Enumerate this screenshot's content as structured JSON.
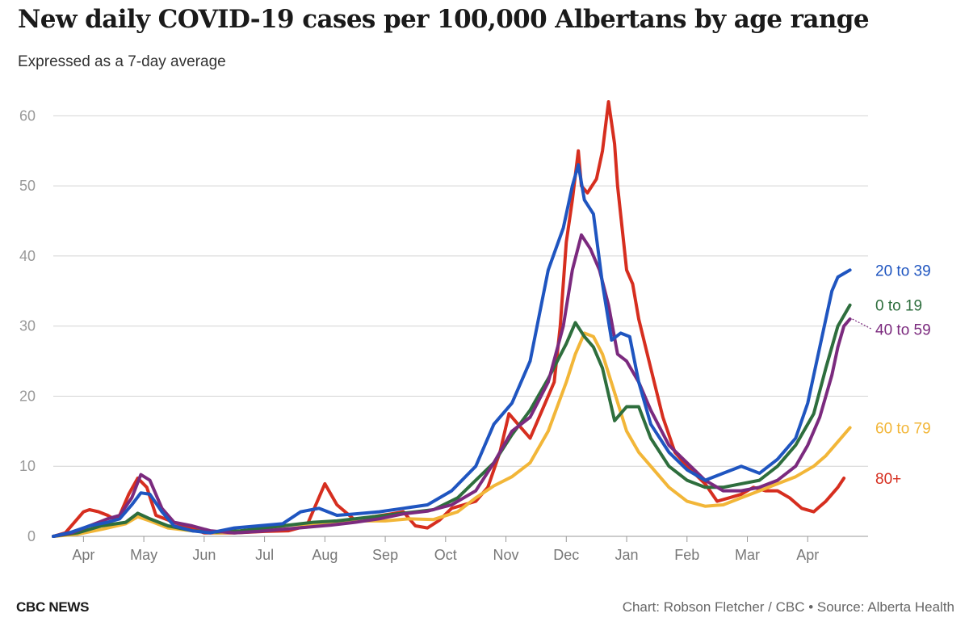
{
  "chart_data": {
    "type": "line",
    "title": "New daily COVID-19 cases per 100,000 Albertans by age range",
    "subtitle": "Expressed as a 7-day average",
    "xlabel": "",
    "ylabel": "",
    "ylim": [
      0,
      65
    ],
    "yticks": [
      0,
      10,
      20,
      30,
      40,
      50,
      60
    ],
    "grid": true,
    "x_domain": [
      0,
      13.5
    ],
    "months": [
      "Apr",
      "May",
      "Jun",
      "Jul",
      "Aug",
      "Sep",
      "Oct",
      "Nov",
      "Dec",
      "Jan",
      "Feb",
      "Mar",
      "Apr"
    ],
    "month_positions": [
      0.5,
      1.5,
      2.5,
      3.5,
      4.5,
      5.5,
      6.5,
      7.5,
      8.5,
      9.5,
      10.5,
      11.5,
      12.5
    ],
    "series": [
      {
        "name": "80+",
        "label": "80+",
        "color": "#d62e1f",
        "x": [
          0,
          0.2,
          0.4,
          0.5,
          0.6,
          0.75,
          0.9,
          1.0,
          1.1,
          1.25,
          1.4,
          1.55,
          1.7,
          2.0,
          2.5,
          3.0,
          3.5,
          3.9,
          4.2,
          4.35,
          4.5,
          4.7,
          5.0,
          5.3,
          5.6,
          5.8,
          6.0,
          6.2,
          6.4,
          6.6,
          6.8,
          7.0,
          7.2,
          7.4,
          7.55,
          7.7,
          7.9,
          8.1,
          8.3,
          8.4,
          8.5,
          8.6,
          8.7,
          8.75,
          8.85,
          9.0,
          9.1,
          9.2,
          9.3,
          9.35,
          9.45,
          9.5,
          9.6,
          9.7,
          9.9,
          10.1,
          10.3,
          10.5,
          10.8,
          11.0,
          11.2,
          11.4,
          11.6,
          11.8,
          12.0,
          12.2,
          12.4,
          12.6,
          12.8,
          13.0,
          13.1
        ],
        "y": [
          0,
          0.5,
          2.5,
          3.5,
          3.8,
          3.5,
          3,
          2.5,
          3,
          6,
          8.3,
          7,
          3,
          2,
          0.5,
          0.5,
          0.7,
          0.8,
          1.5,
          4.5,
          7.5,
          4.5,
          2.3,
          2.8,
          3.2,
          3.5,
          1.5,
          1.2,
          2.3,
          4,
          4.5,
          5,
          7,
          12,
          17.5,
          16,
          14,
          18,
          22,
          30,
          42,
          48,
          55,
          50,
          49,
          51,
          55,
          62,
          56,
          50,
          42,
          38,
          36,
          31,
          24,
          17,
          12,
          10,
          7.5,
          5,
          5.5,
          6,
          7,
          6.5,
          6.5,
          5.5,
          4,
          3.5,
          5,
          7,
          8.3
        ]
      },
      {
        "name": "60 to 79",
        "label": "60 to 79",
        "color": "#f2b638",
        "x": [
          0,
          0.4,
          0.8,
          1.2,
          1.4,
          1.6,
          1.9,
          2.3,
          2.7,
          3.1,
          3.5,
          3.9,
          4.3,
          4.7,
          5.1,
          5.5,
          5.9,
          6.3,
          6.7,
          7.0,
          7.3,
          7.6,
          7.9,
          8.2,
          8.5,
          8.65,
          8.8,
          8.95,
          9.1,
          9.3,
          9.5,
          9.7,
          9.9,
          10.2,
          10.5,
          10.8,
          11.1,
          11.4,
          11.7,
          12.0,
          12.3,
          12.6,
          12.8,
          13.0,
          13.2
        ],
        "y": [
          0,
          0.3,
          1,
          1.8,
          2.8,
          2.2,
          1.2,
          0.8,
          0.5,
          0.6,
          1.1,
          1.6,
          1.8,
          2,
          2.2,
          2.2,
          2.5,
          2.4,
          3.5,
          5.5,
          7.2,
          8.5,
          10.5,
          15,
          22,
          26,
          29,
          28.5,
          26,
          20.5,
          15,
          12,
          10,
          7,
          5,
          4.3,
          4.5,
          5.5,
          6.5,
          7.5,
          8.5,
          10,
          11.5,
          13.5,
          15.5
        ]
      },
      {
        "name": "0 to 19",
        "label": "0 to 19",
        "color": "#2e6e3d",
        "x": [
          0,
          0.4,
          0.8,
          1.2,
          1.4,
          1.6,
          1.9,
          2.3,
          2.7,
          3.1,
          3.5,
          3.9,
          4.3,
          4.7,
          5.1,
          5.5,
          5.9,
          6.3,
          6.7,
          7.0,
          7.3,
          7.6,
          7.9,
          8.2,
          8.5,
          8.65,
          8.8,
          8.95,
          9.1,
          9.3,
          9.5,
          9.7,
          9.9,
          10.2,
          10.5,
          10.8,
          11.1,
          11.4,
          11.7,
          12.0,
          12.3,
          12.6,
          12.8,
          13.0,
          13.2
        ],
        "y": [
          0,
          0.5,
          1.5,
          2,
          3.3,
          2.5,
          1.5,
          0.8,
          0.6,
          0.8,
          1.2,
          1.6,
          2,
          2.2,
          2.6,
          3,
          3.4,
          3.8,
          5.5,
          8,
          10.5,
          14.5,
          18,
          22.5,
          27.5,
          30.5,
          28.5,
          27,
          24,
          16.5,
          18.5,
          18.5,
          14,
          10,
          8,
          7,
          7,
          7.5,
          8,
          10,
          13,
          17.5,
          24,
          30,
          33
        ]
      },
      {
        "name": "40 to 59",
        "label": "40 to 59",
        "color": "#7b2a7e",
        "x": [
          0,
          0.3,
          0.6,
          0.9,
          1.1,
          1.3,
          1.45,
          1.6,
          1.8,
          2.0,
          2.3,
          2.6,
          3.0,
          3.4,
          3.8,
          4.2,
          4.6,
          5.0,
          5.4,
          5.8,
          6.2,
          6.6,
          7.0,
          7.3,
          7.6,
          7.9,
          8.2,
          8.45,
          8.6,
          8.75,
          8.9,
          9.05,
          9.2,
          9.35,
          9.5,
          9.7,
          9.9,
          10.2,
          10.5,
          10.8,
          11.1,
          11.4,
          11.7,
          12.0,
          12.3,
          12.5,
          12.7,
          12.9,
          13.0,
          13.1,
          13.2
        ],
        "y": [
          0,
          0.5,
          1.5,
          2.5,
          3,
          5.5,
          8.8,
          8,
          4,
          2,
          1.5,
          0.8,
          0.5,
          0.7,
          1,
          1.3,
          1.6,
          2,
          2.5,
          3.2,
          3.6,
          4.5,
          6.5,
          10.5,
          15,
          17,
          22,
          30,
          38,
          43,
          41,
          38,
          33,
          26,
          25,
          22,
          18,
          13,
          10.5,
          8,
          6.5,
          6.5,
          7,
          8,
          10,
          13,
          17,
          23,
          27,
          30,
          31
        ]
      },
      {
        "name": "20 to 39",
        "label": "20 to 39",
        "color": "#1f55c0",
        "x": [
          0,
          0.3,
          0.6,
          0.9,
          1.1,
          1.3,
          1.45,
          1.6,
          1.8,
          2.0,
          2.3,
          2.6,
          3.0,
          3.4,
          3.8,
          4.1,
          4.4,
          4.7,
          5.0,
          5.4,
          5.8,
          6.2,
          6.6,
          7.0,
          7.3,
          7.6,
          7.9,
          8.2,
          8.45,
          8.6,
          8.7,
          8.8,
          8.95,
          9.1,
          9.25,
          9.4,
          9.55,
          9.7,
          9.9,
          10.2,
          10.5,
          10.8,
          11.1,
          11.4,
          11.7,
          12.0,
          12.3,
          12.5,
          12.7,
          12.9,
          13.0,
          13.1,
          13.2
        ],
        "y": [
          0,
          0.6,
          1.5,
          2,
          2.5,
          4.5,
          6.2,
          6,
          3.5,
          1.5,
          0.8,
          0.5,
          1.2,
          1.5,
          1.8,
          3.5,
          4,
          3,
          3.2,
          3.5,
          4,
          4.5,
          6.5,
          10,
          16,
          19,
          25,
          38,
          44,
          50,
          53,
          48,
          46,
          36,
          28,
          29,
          28.5,
          22,
          16,
          12,
          9.5,
          8,
          9,
          10,
          9,
          11,
          14,
          19,
          27,
          35,
          37,
          37.5,
          38
        ]
      }
    ]
  },
  "footer": {
    "brand": "CBC NEWS",
    "credit": "Chart: Robson Fletcher / CBC • Source: Alberta Health"
  }
}
